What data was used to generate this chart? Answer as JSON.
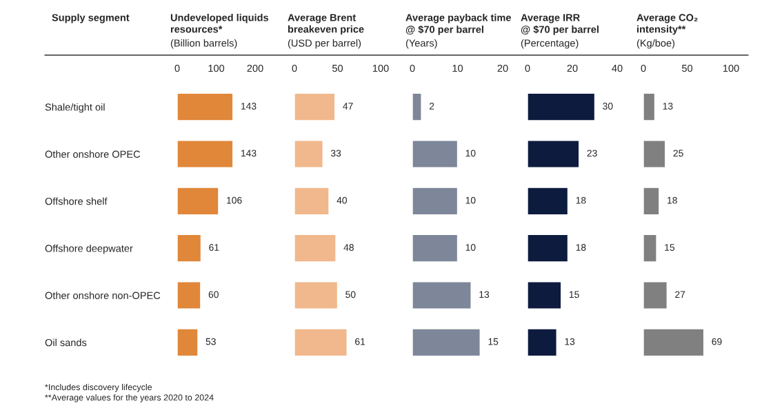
{
  "chart_data": [
    {
      "type": "bar",
      "orientation": "horizontal",
      "title": "Undeveloped liquids\nresources*",
      "subtitle": "(Billion barrels)",
      "ylabel": "Supply segment",
      "categories": [
        "Shale/tight oil",
        "Other onshore OPEC",
        "Offshore shelf",
        "Offshore deepwater",
        "Other onshore non-OPEC",
        "Oil sands"
      ],
      "values": [
        143,
        143,
        106,
        61,
        60,
        53
      ],
      "color": "#e0873a",
      "xlim": [
        0,
        200
      ],
      "xticks": [
        0,
        100,
        200
      ],
      "data_labels": true,
      "annotations": [
        "*Includes discovery lifecycle",
        "**Average values for the years 2020 to 2024"
      ]
    },
    {
      "type": "bar",
      "orientation": "horizontal",
      "title": "Average Brent\nbreakeven price",
      "subtitle": "(USD per barrel)",
      "categories": [
        null,
        null,
        null,
        null,
        null,
        null
      ],
      "values": [
        47,
        33,
        40,
        48,
        50,
        61
      ],
      "color": "#f0b88c",
      "xlim": [
        0,
        100
      ],
      "xticks": [
        0,
        50,
        100
      ],
      "data_labels": true,
      "tick_labels": "x"
    },
    {
      "type": "bar",
      "orientation": "horizontal",
      "title": "Average payback time\n@ $70 per barrel",
      "subtitle": "(Years)",
      "categories": [
        null,
        null,
        null,
        null,
        null,
        null
      ],
      "values": [
        2,
        10,
        10,
        10,
        13,
        15
      ],
      "color": "#7d8799",
      "xlim": [
        0,
        20
      ],
      "xticks": [
        0,
        10,
        20
      ],
      "data_labels": true,
      "tick_labels": "x"
    },
    {
      "type": "bar",
      "orientation": "horizontal",
      "title": "Average IRR\n@ $70 per barrel",
      "subtitle": "(Percentage)",
      "categories": [
        null,
        null,
        null,
        null,
        null,
        null
      ],
      "values": [
        30,
        23,
        18,
        18,
        15,
        13
      ],
      "color": "#0d1b3e",
      "xlim": [
        0,
        40
      ],
      "xticks": [
        0,
        20,
        40
      ],
      "data_labels": true,
      "tick_labels": "x"
    },
    {
      "type": "bar",
      "orientation": "horizontal",
      "title": "Average CO₂\nintensity**",
      "subtitle": "(Kg/boe)",
      "categories": [
        null,
        null,
        null,
        null,
        null,
        null
      ],
      "values": [
        13,
        25,
        18,
        15,
        27,
        69
      ],
      "color": "#808080",
      "xlim": [
        0,
        100
      ],
      "xticks": [
        0,
        50,
        100
      ],
      "data_labels": true,
      "tick_labels": "x"
    }
  ]
}
